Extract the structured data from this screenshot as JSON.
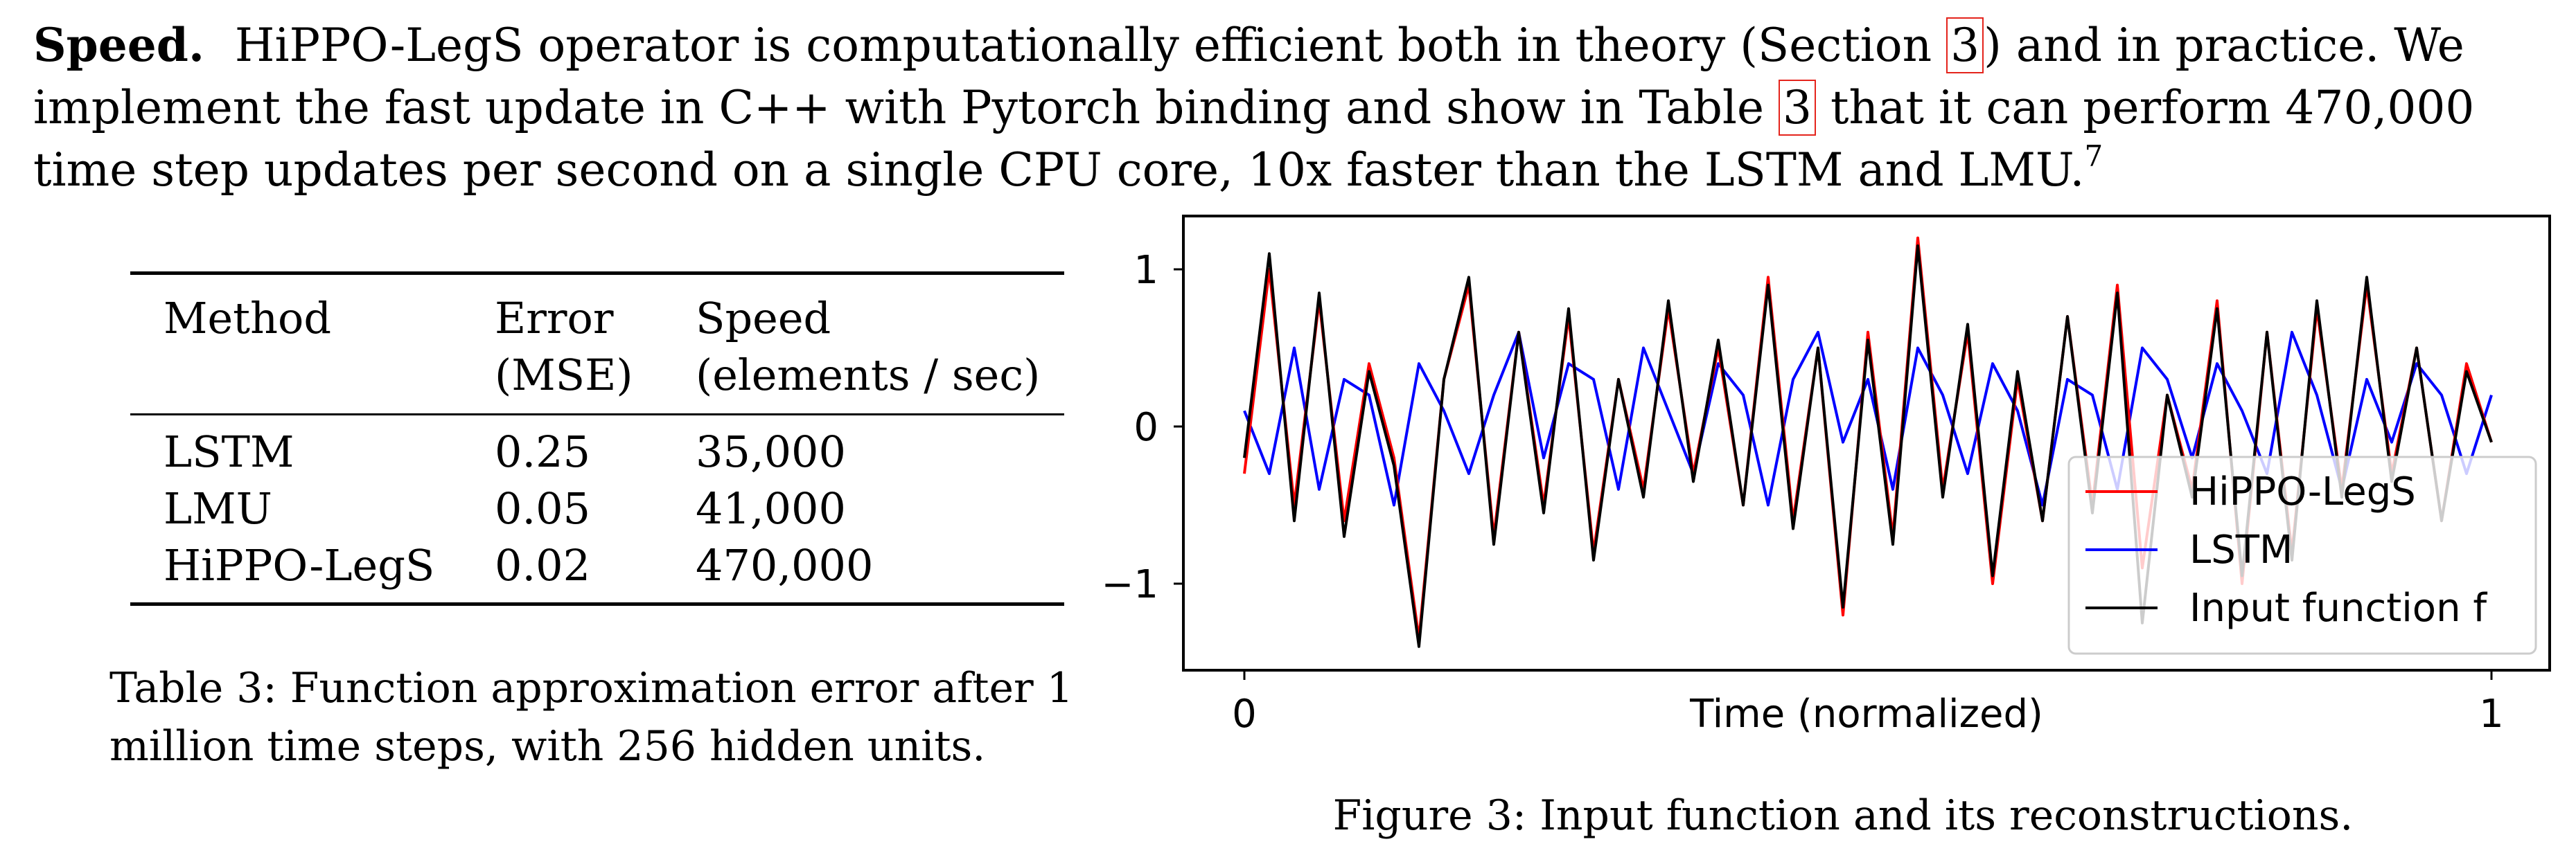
{
  "paragraph": {
    "heading": "Speed.",
    "text_1": "HiPPO-LegS operator is computationally efficient both in theory (Section ",
    "ref_section": "3",
    "text_2": ") and in practice. We implement the fast update in C++ with Pytorch binding and show in Table ",
    "ref_table": "3",
    "text_3": " that it can perform 470,000 time step updates per second on a single CPU core, 10x faster than the LSTM and LMU.",
    "footnote": "7"
  },
  "table": {
    "headers": [
      {
        "line1": "Method",
        "line2": ""
      },
      {
        "line1": "Error",
        "line2": "(MSE)"
      },
      {
        "line1": "Speed",
        "line2": "(elements / sec)"
      }
    ],
    "rows": [
      {
        "method": "LSTM",
        "error": "0.25",
        "speed": "35,000"
      },
      {
        "method": "LMU",
        "error": "0.05",
        "speed": "41,000"
      },
      {
        "method": "HiPPO-LegS",
        "error": "0.02",
        "speed": "470,000"
      }
    ],
    "caption": "Table 3: Function approximation error after 1 million time steps, with 256 hidden units."
  },
  "figure": {
    "caption": "Figure 3: Input function and its reconstructions."
  },
  "chart_data": {
    "type": "line",
    "xlabel": "Time (normalized)",
    "ylabel": "",
    "xlim": [
      0,
      1
    ],
    "ylim": [
      -1.5,
      1.35
    ],
    "xticks": [
      {
        "value": 0,
        "label": "0"
      },
      {
        "value": 1,
        "label": "1"
      }
    ],
    "yticks": [
      {
        "value": 1,
        "label": "1"
      },
      {
        "value": 0,
        "label": "0"
      },
      {
        "value": -1,
        "label": "−1"
      }
    ],
    "legend_position": "lower-right",
    "grid": false,
    "x": [
      0.0,
      0.02,
      0.04,
      0.06,
      0.08,
      0.1,
      0.12,
      0.14,
      0.16,
      0.18,
      0.2,
      0.22,
      0.24,
      0.26,
      0.28,
      0.3,
      0.32,
      0.34,
      0.36,
      0.38,
      0.4,
      0.42,
      0.44,
      0.46,
      0.48,
      0.5,
      0.52,
      0.54,
      0.56,
      0.58,
      0.6,
      0.62,
      0.64,
      0.66,
      0.68,
      0.7,
      0.72,
      0.74,
      0.76,
      0.78,
      0.8,
      0.82,
      0.84,
      0.86,
      0.88,
      0.9,
      0.92,
      0.94,
      0.96,
      0.98,
      1.0
    ],
    "series": [
      {
        "name": "HiPPO-LegS",
        "color": "#ff0000",
        "values": [
          -0.3,
          1.0,
          -0.5,
          0.8,
          -0.6,
          0.4,
          -0.2,
          -1.35,
          0.3,
          0.9,
          -0.7,
          0.6,
          -0.5,
          0.7,
          -0.8,
          0.3,
          -0.4,
          0.75,
          -0.3,
          0.5,
          -0.5,
          0.95,
          -0.6,
          0.5,
          -1.2,
          0.6,
          -0.7,
          1.2,
          -0.4,
          0.6,
          -1.0,
          0.3,
          -0.6,
          0.7,
          -0.5,
          0.9,
          -0.9,
          0.2,
          -0.4,
          0.8,
          -1.0,
          0.6,
          -0.8,
          0.75,
          -0.4,
          0.9,
          -0.3,
          0.5,
          -0.6,
          0.4,
          -0.1
        ]
      },
      {
        "name": "LSTM",
        "color": "#0000ff",
        "values": [
          0.1,
          -0.3,
          0.5,
          -0.4,
          0.3,
          0.2,
          -0.5,
          0.4,
          0.1,
          -0.3,
          0.2,
          0.6,
          -0.2,
          0.4,
          0.3,
          -0.4,
          0.5,
          0.1,
          -0.3,
          0.4,
          0.2,
          -0.5,
          0.3,
          0.6,
          -0.1,
          0.3,
          -0.4,
          0.5,
          0.2,
          -0.3,
          0.4,
          0.1,
          -0.5,
          0.3,
          0.2,
          -0.4,
          0.5,
          0.3,
          -0.2,
          0.4,
          0.1,
          -0.3,
          0.6,
          0.2,
          -0.4,
          0.3,
          -0.1,
          0.4,
          0.2,
          -0.3,
          0.2
        ]
      },
      {
        "name": "Input function f",
        "color": "#000000",
        "values": [
          -0.2,
          1.1,
          -0.6,
          0.85,
          -0.7,
          0.35,
          -0.25,
          -1.4,
          0.3,
          0.95,
          -0.75,
          0.6,
          -0.55,
          0.75,
          -0.85,
          0.3,
          -0.45,
          0.8,
          -0.35,
          0.55,
          -0.5,
          0.9,
          -0.65,
          0.5,
          -1.15,
          0.55,
          -0.75,
          1.15,
          -0.45,
          0.65,
          -0.95,
          0.35,
          -0.6,
          0.7,
          -0.55,
          0.85,
          -1.25,
          0.2,
          -0.45,
          0.75,
          -0.95,
          0.6,
          -0.85,
          0.8,
          -0.45,
          0.95,
          -0.35,
          0.5,
          -0.6,
          0.35,
          -0.1
        ]
      }
    ]
  }
}
